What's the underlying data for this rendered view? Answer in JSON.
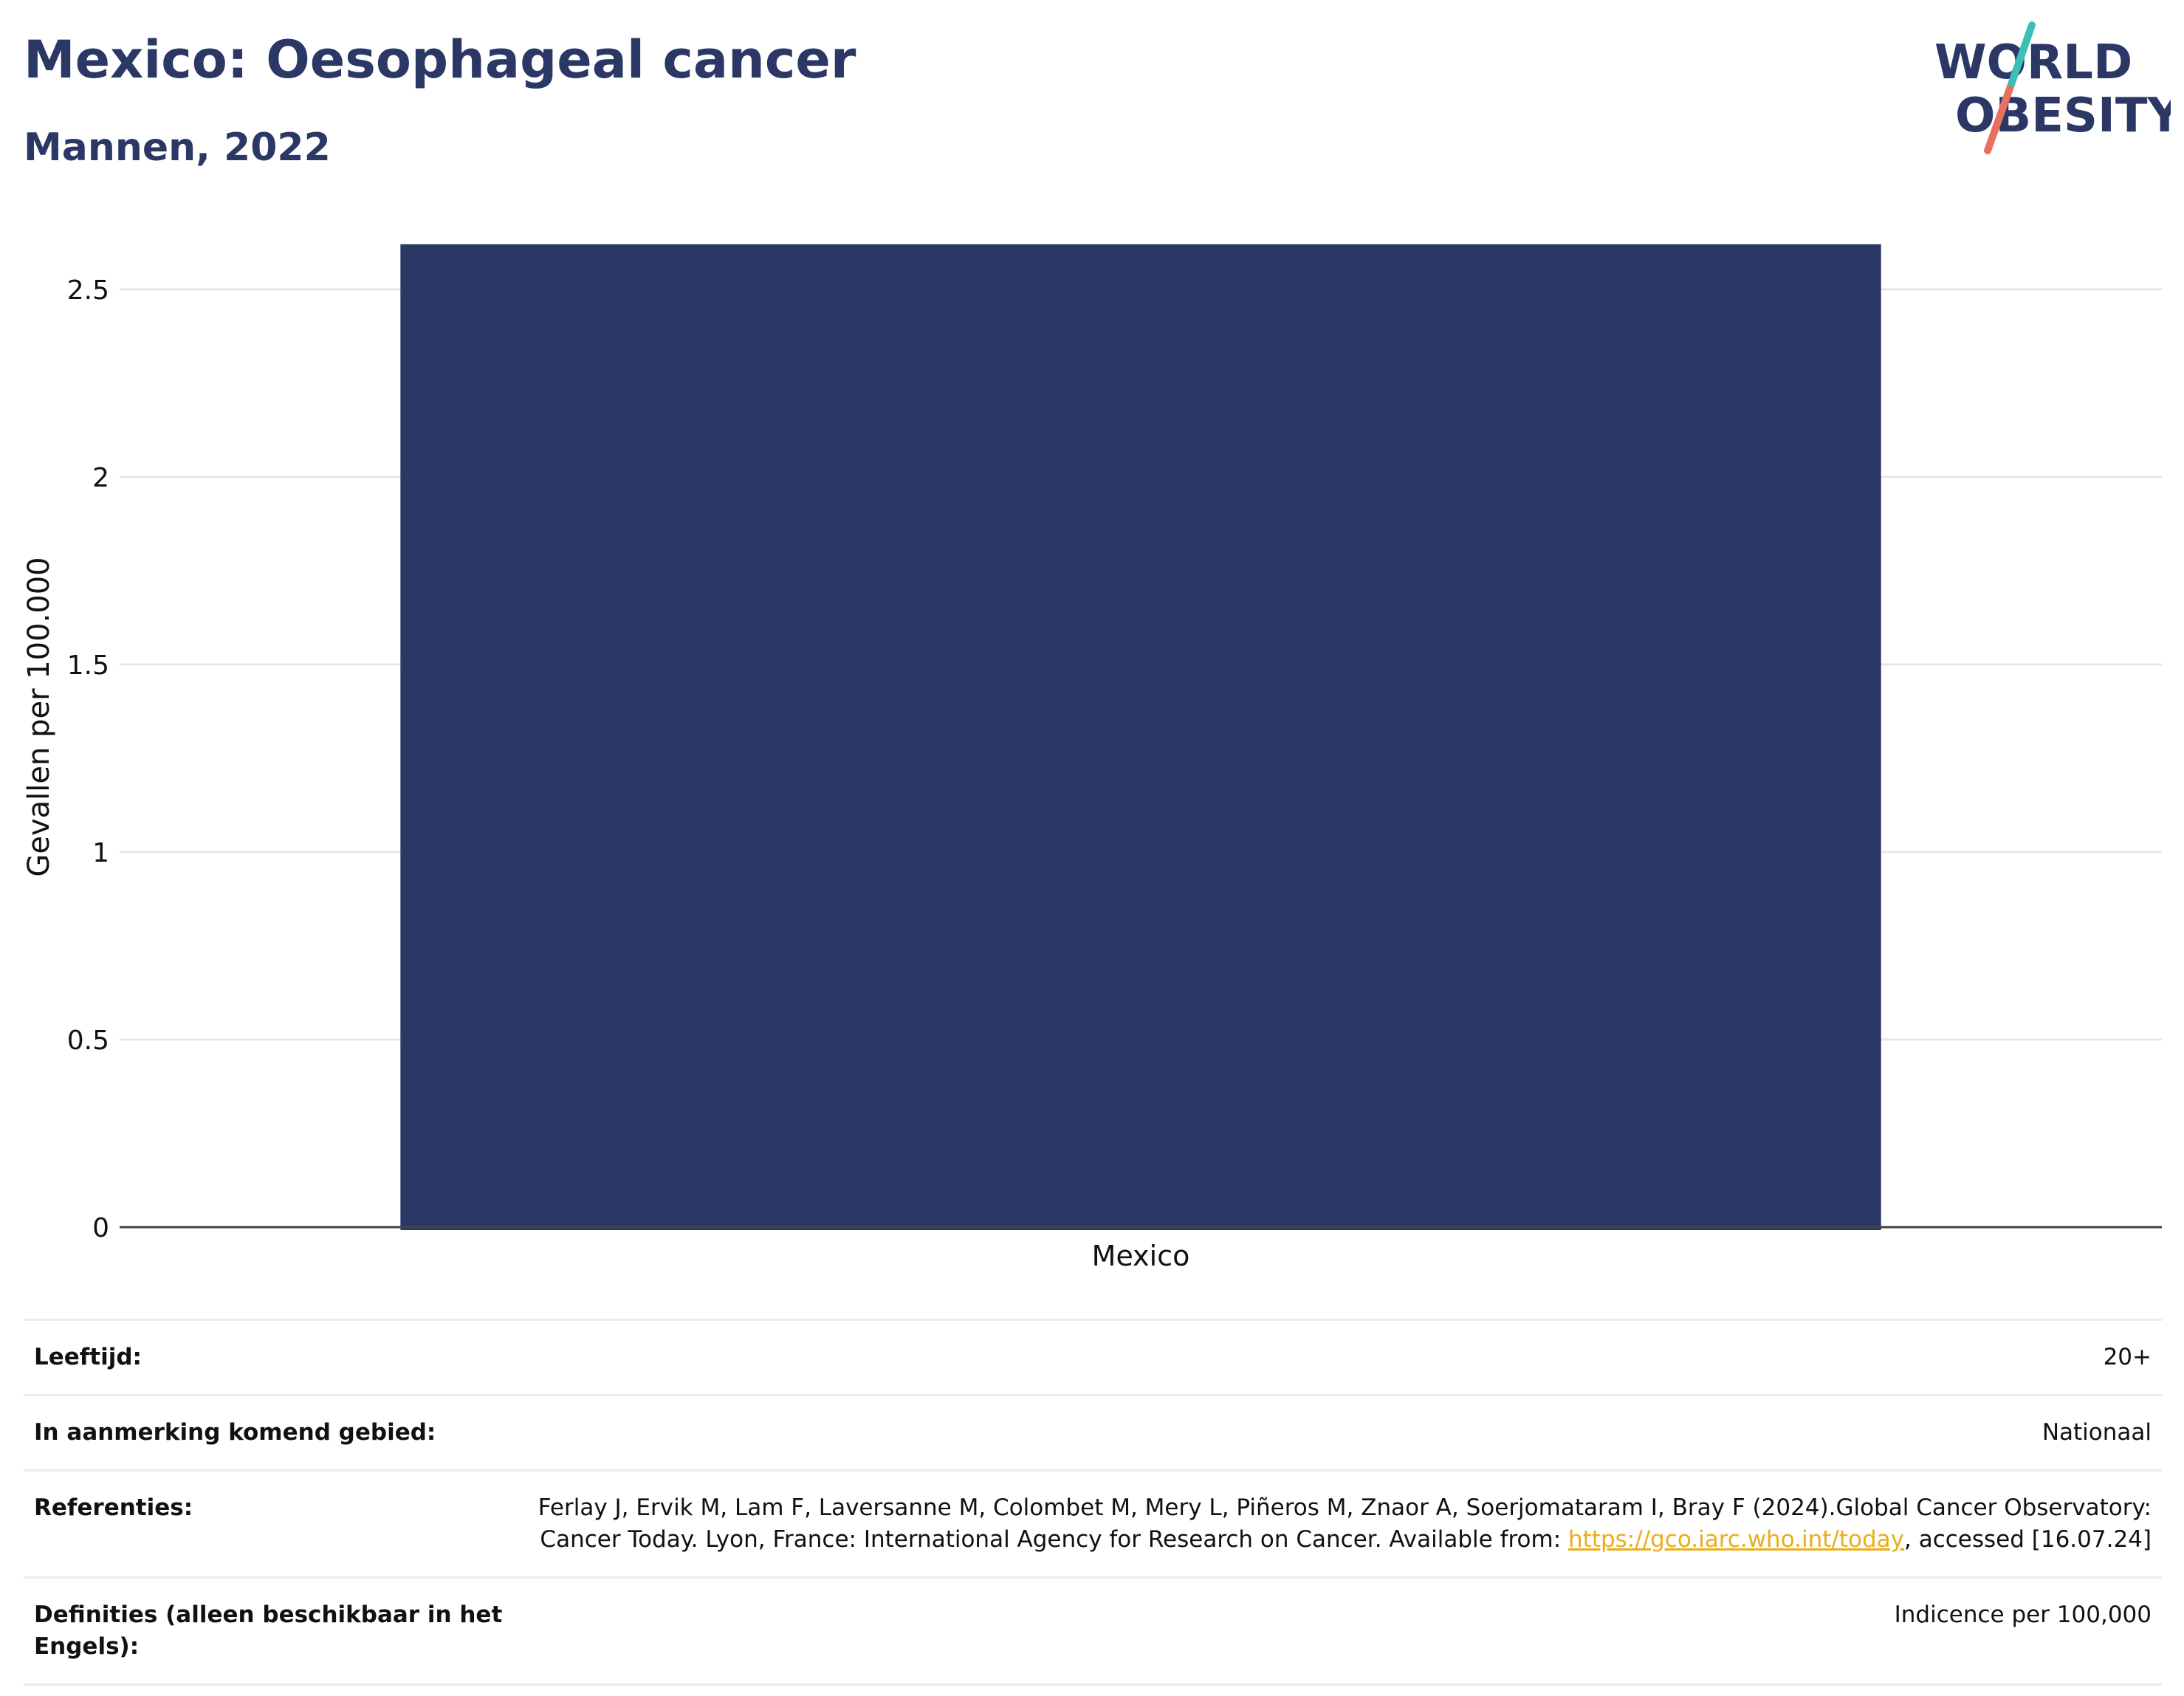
{
  "header": {
    "title": "Mexico: Oesophageal cancer",
    "subtitle": "Mannen, 2022"
  },
  "logo": {
    "line1": "WORLD",
    "line2": "OBESITY",
    "text_color": "#2b3764",
    "accent_teal": "#3bbfb6",
    "accent_coral": "#e8705f"
  },
  "chart_data": {
    "type": "bar",
    "categories": [
      "Mexico"
    ],
    "values": [
      2.62
    ],
    "ylabel": "Gevallen per 100.000",
    "xlabel": "",
    "ylim": [
      0,
      2.72
    ],
    "yticks": [
      0,
      0.5,
      1,
      1.5,
      2,
      2.5
    ],
    "ytick_labels": [
      "0",
      "0.5",
      "1",
      "1.5",
      "2",
      "2.5"
    ],
    "grid": true,
    "bar_color": "#2b3764"
  },
  "meta": {
    "age_label": "Leeftijd:",
    "age_value": "20+",
    "area_label": "In aanmerking komend gebied:",
    "area_value": "Nationaal",
    "ref_label": "Referenties:",
    "ref_text_before": "Ferlay J, Ervik M, Lam F, Laversanne M, Colombet M, Mery L, Piñeros M, Znaor A, Soerjomataram I, Bray F (2024).Global Cancer Observatory: Cancer Today. Lyon, France: International Agency for Research on Cancer. Available from: ",
    "ref_link": "https://gco.iarc.who.int/today",
    "ref_text_after": ", accessed [16.07.24]",
    "def_label": "Definities (alleen beschikbaar in het Engels):",
    "def_value": "Indicence per 100,000"
  }
}
